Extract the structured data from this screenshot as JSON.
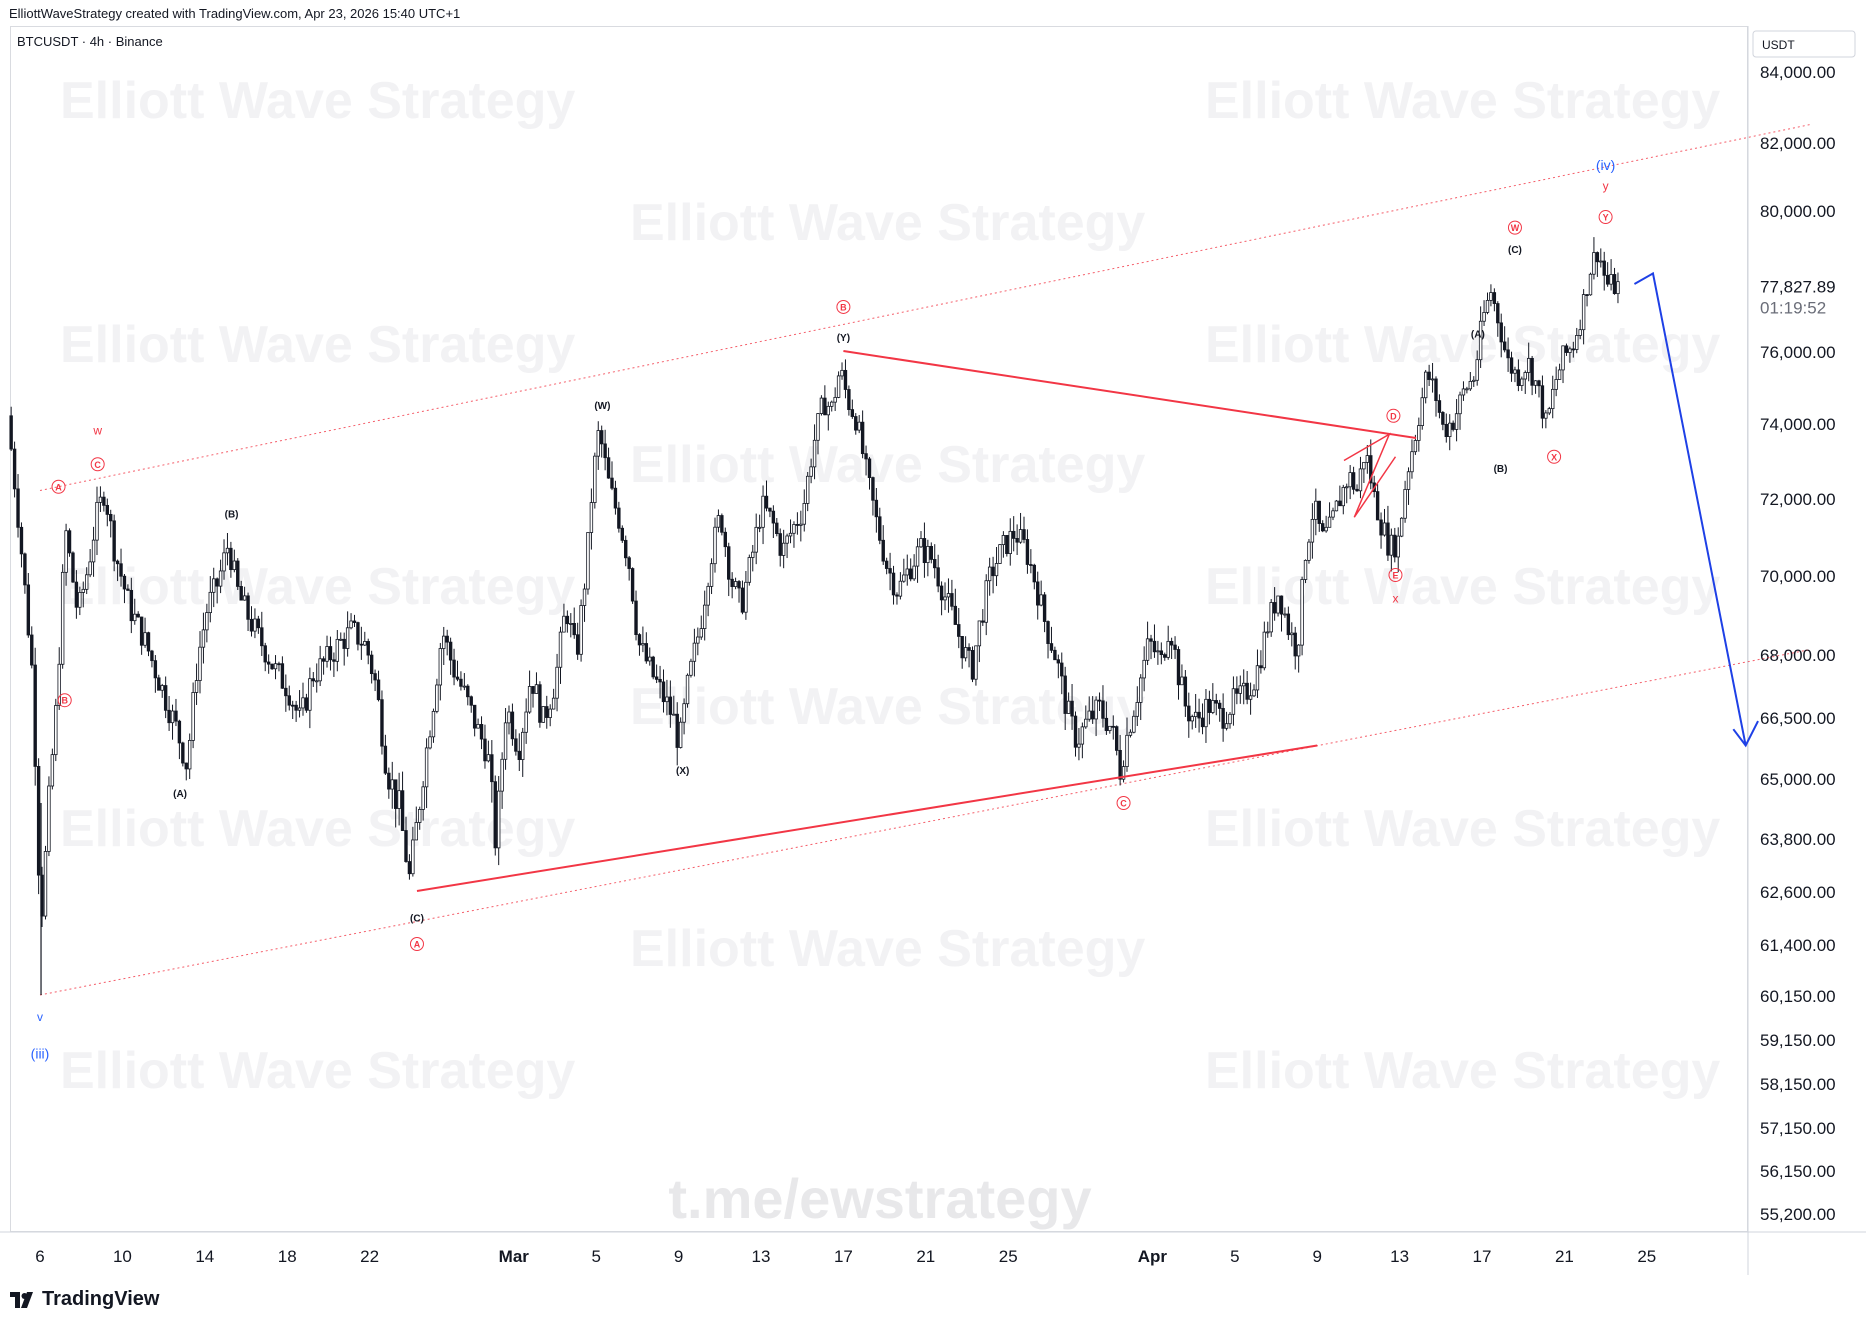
{
  "header": {
    "credit": "ElliottWaveStrategy created with TradingView.com, Apr 23, 2026 15:40 UTC+1",
    "symbol": "BTCUSDT · 4h · Binance"
  },
  "footer": {
    "brand": "TradingView"
  },
  "watermarks": {
    "text": "Elliott Wave Strategy",
    "link": "t.me/ewstrategy"
  },
  "colors": {
    "candle": "#131722",
    "red": "#f23645",
    "blue": "#1e40e6",
    "blue_label": "#2962ff",
    "watermark": "#f2f2f4"
  },
  "chart_data": {
    "type": "candlestick",
    "title": "",
    "y_unit": "USDT",
    "last_price": "77,827.89",
    "countdown": "01:19:52",
    "y_ticks": [
      {
        "label": "84,000.00",
        "value": 84000
      },
      {
        "label": "82,000.00",
        "value": 82000
      },
      {
        "label": "80,000.00",
        "value": 80000
      },
      {
        "label": "76,000.00",
        "value": 76000
      },
      {
        "label": "74,000.00",
        "value": 74000
      },
      {
        "label": "72,000.00",
        "value": 72000
      },
      {
        "label": "70,000.00",
        "value": 70000
      },
      {
        "label": "68,000.00",
        "value": 68000
      },
      {
        "label": "66,500.00",
        "value": 66500
      },
      {
        "label": "65,000.00",
        "value": 65000
      },
      {
        "label": "63,800.00",
        "value": 63800
      },
      {
        "label": "62,600.00",
        "value": 62600
      },
      {
        "label": "61,400.00",
        "value": 61400
      },
      {
        "label": "60,150.00",
        "value": 60150
      },
      {
        "label": "59,150.00",
        "value": 59150
      },
      {
        "label": "58,150.00",
        "value": 58150
      },
      {
        "label": "57,150.00",
        "value": 57150
      },
      {
        "label": "56,150.00",
        "value": 56150
      },
      {
        "label": "55,200.00",
        "value": 55200
      }
    ],
    "x_ticks": [
      {
        "label": "6",
        "day": 0
      },
      {
        "label": "10",
        "day": 4
      },
      {
        "label": "14",
        "day": 8
      },
      {
        "label": "18",
        "day": 12
      },
      {
        "label": "22",
        "day": 16
      },
      {
        "label": "Mar",
        "day": 23,
        "bold": true
      },
      {
        "label": "5",
        "day": 27
      },
      {
        "label": "9",
        "day": 31
      },
      {
        "label": "13",
        "day": 35
      },
      {
        "label": "17",
        "day": 39
      },
      {
        "label": "21",
        "day": 43
      },
      {
        "label": "25",
        "day": 47
      },
      {
        "label": "Apr",
        "day": 54,
        "bold": true
      },
      {
        "label": "5",
        "day": 58
      },
      {
        "label": "9",
        "day": 62
      },
      {
        "label": "13",
        "day": 66
      },
      {
        "label": "17",
        "day": 70
      },
      {
        "label": "21",
        "day": 74
      },
      {
        "label": "25",
        "day": 78
      }
    ],
    "anchors": [
      {
        "day": -1.4,
        "p": 74200
      },
      {
        "day": -0.8,
        "p": 71000
      },
      {
        "day": -0.2,
        "p": 67500
      },
      {
        "day": 0.2,
        "p": 61800
      },
      {
        "day": 0.6,
        "p": 64500
      },
      {
        "day": 1.0,
        "p": 67000
      },
      {
        "day": 1.4,
        "p": 71200
      },
      {
        "day": 2.0,
        "p": 69000
      },
      {
        "day": 2.5,
        "p": 70200
      },
      {
        "day": 2.9,
        "p": 71500
      },
      {
        "day": 3.3,
        "p": 72200
      },
      {
        "day": 3.8,
        "p": 70600
      },
      {
        "day": 4.5,
        "p": 69200
      },
      {
        "day": 5.2,
        "p": 68400
      },
      {
        "day": 6.0,
        "p": 67300
      },
      {
        "day": 6.8,
        "p": 66200
      },
      {
        "day": 7.3,
        "p": 65300
      },
      {
        "day": 7.8,
        "p": 67800
      },
      {
        "day": 8.3,
        "p": 69200
      },
      {
        "day": 8.8,
        "p": 69800
      },
      {
        "day": 9.3,
        "p": 70800
      },
      {
        "day": 9.8,
        "p": 69500
      },
      {
        "day": 10.4,
        "p": 68800
      },
      {
        "day": 11.0,
        "p": 68200
      },
      {
        "day": 11.6,
        "p": 67600
      },
      {
        "day": 12.2,
        "p": 67200
      },
      {
        "day": 12.8,
        "p": 66400
      },
      {
        "day": 13.4,
        "p": 67500
      },
      {
        "day": 14.0,
        "p": 67800
      },
      {
        "day": 14.6,
        "p": 68200
      },
      {
        "day": 15.3,
        "p": 68600
      },
      {
        "day": 16.0,
        "p": 68200
      },
      {
        "day": 16.5,
        "p": 67200
      },
      {
        "day": 17.0,
        "p": 65200
      },
      {
        "day": 17.6,
        "p": 64400
      },
      {
        "day": 18.1,
        "p": 62900
      },
      {
        "day": 18.5,
        "p": 64200
      },
      {
        "day": 18.9,
        "p": 65600
      },
      {
        "day": 19.3,
        "p": 67000
      },
      {
        "day": 19.7,
        "p": 68600
      },
      {
        "day": 20.2,
        "p": 67700
      },
      {
        "day": 20.8,
        "p": 67000
      },
      {
        "day": 21.4,
        "p": 66200
      },
      {
        "day": 21.9,
        "p": 65600
      },
      {
        "day": 22.3,
        "p": 63600
      },
      {
        "day": 22.8,
        "p": 66800
      },
      {
        "day": 23.4,
        "p": 65700
      },
      {
        "day": 24.0,
        "p": 67500
      },
      {
        "day": 24.6,
        "p": 66400
      },
      {
        "day": 25.2,
        "p": 67400
      },
      {
        "day": 25.7,
        "p": 69200
      },
      {
        "day": 26.2,
        "p": 67900
      },
      {
        "day": 26.7,
        "p": 70300
      },
      {
        "day": 27.0,
        "p": 72500
      },
      {
        "day": 27.3,
        "p": 73800
      },
      {
        "day": 27.8,
        "p": 72300
      },
      {
        "day": 28.3,
        "p": 71400
      },
      {
        "day": 28.8,
        "p": 70200
      },
      {
        "day": 29.2,
        "p": 68300
      },
      {
        "day": 29.8,
        "p": 67600
      },
      {
        "day": 30.4,
        "p": 67000
      },
      {
        "day": 30.9,
        "p": 66500
      },
      {
        "day": 31.2,
        "p": 65800
      },
      {
        "day": 31.6,
        "p": 67200
      },
      {
        "day": 32.2,
        "p": 68700
      },
      {
        "day": 32.7,
        "p": 70400
      },
      {
        "day": 33.2,
        "p": 71600
      },
      {
        "day": 33.7,
        "p": 69900
      },
      {
        "day": 34.2,
        "p": 69200
      },
      {
        "day": 34.7,
        "p": 70400
      },
      {
        "day": 35.2,
        "p": 71800
      },
      {
        "day": 35.7,
        "p": 71400
      },
      {
        "day": 36.2,
        "p": 70600
      },
      {
        "day": 36.7,
        "p": 71200
      },
      {
        "day": 37.2,
        "p": 71700
      },
      {
        "day": 37.7,
        "p": 73400
      },
      {
        "day": 38.2,
        "p": 74600
      },
      {
        "day": 38.6,
        "p": 74400
      },
      {
        "day": 39.0,
        "p": 75500
      },
      {
        "day": 39.4,
        "p": 74600
      },
      {
        "day": 39.8,
        "p": 74100
      },
      {
        "day": 40.3,
        "p": 72600
      },
      {
        "day": 40.8,
        "p": 71300
      },
      {
        "day": 41.3,
        "p": 70200
      },
      {
        "day": 41.8,
        "p": 69600
      },
      {
        "day": 42.3,
        "p": 70100
      },
      {
        "day": 42.9,
        "p": 70700
      },
      {
        "day": 43.5,
        "p": 70400
      },
      {
        "day": 44.0,
        "p": 69600
      },
      {
        "day": 44.5,
        "p": 68900
      },
      {
        "day": 45.0,
        "p": 68100
      },
      {
        "day": 45.4,
        "p": 67600
      },
      {
        "day": 45.8,
        "p": 68800
      },
      {
        "day": 46.3,
        "p": 70000
      },
      {
        "day": 46.9,
        "p": 70700
      },
      {
        "day": 47.5,
        "p": 71100
      },
      {
        "day": 48.0,
        "p": 70700
      },
      {
        "day": 48.5,
        "p": 69800
      },
      {
        "day": 49.0,
        "p": 68700
      },
      {
        "day": 49.5,
        "p": 67900
      },
      {
        "day": 50.0,
        "p": 66700
      },
      {
        "day": 50.5,
        "p": 65900
      },
      {
        "day": 51.0,
        "p": 66400
      },
      {
        "day": 51.6,
        "p": 66700
      },
      {
        "day": 52.2,
        "p": 66200
      },
      {
        "day": 52.6,
        "p": 65200
      },
      {
        "day": 53.0,
        "p": 66200
      },
      {
        "day": 53.5,
        "p": 67200
      },
      {
        "day": 54.0,
        "p": 68300
      },
      {
        "day": 54.6,
        "p": 67800
      },
      {
        "day": 55.0,
        "p": 68800
      },
      {
        "day": 55.4,
        "p": 67600
      },
      {
        "day": 55.8,
        "p": 66700
      },
      {
        "day": 56.3,
        "p": 66400
      },
      {
        "day": 56.9,
        "p": 66800
      },
      {
        "day": 57.5,
        "p": 66500
      },
      {
        "day": 58.0,
        "p": 66800
      },
      {
        "day": 58.6,
        "p": 67000
      },
      {
        "day": 59.2,
        "p": 67500
      },
      {
        "day": 59.8,
        "p": 68800
      },
      {
        "day": 60.3,
        "p": 69600
      },
      {
        "day": 60.8,
        "p": 68600
      },
      {
        "day": 61.2,
        "p": 68100
      },
      {
        "day": 61.6,
        "p": 70600
      },
      {
        "day": 62.0,
        "p": 71800
      },
      {
        "day": 62.4,
        "p": 70900
      },
      {
        "day": 62.8,
        "p": 71200
      },
      {
        "day": 63.2,
        "p": 71900
      },
      {
        "day": 63.7,
        "p": 72600
      },
      {
        "day": 64.1,
        "p": 72200
      },
      {
        "day": 64.5,
        "p": 73300
      },
      {
        "day": 64.9,
        "p": 72100
      },
      {
        "day": 65.3,
        "p": 71300
      },
      {
        "day": 65.7,
        "p": 70700
      },
      {
        "day": 66.1,
        "p": 70900
      },
      {
        "day": 66.5,
        "p": 72600
      },
      {
        "day": 67.0,
        "p": 73900
      },
      {
        "day": 67.5,
        "p": 75400
      },
      {
        "day": 67.9,
        "p": 74800
      },
      {
        "day": 68.3,
        "p": 73800
      },
      {
        "day": 68.8,
        "p": 74100
      },
      {
        "day": 69.3,
        "p": 74900
      },
      {
        "day": 69.8,
        "p": 75300
      },
      {
        "day": 70.2,
        "p": 76900
      },
      {
        "day": 70.6,
        "p": 77700
      },
      {
        "day": 71.0,
        "p": 76800
      },
      {
        "day": 71.4,
        "p": 75700
      },
      {
        "day": 71.9,
        "p": 75300
      },
      {
        "day": 72.4,
        "p": 75700
      },
      {
        "day": 72.9,
        "p": 74900
      },
      {
        "day": 73.3,
        "p": 73900
      },
      {
        "day": 73.7,
        "p": 75100
      },
      {
        "day": 74.1,
        "p": 75800
      },
      {
        "day": 74.6,
        "p": 76200
      },
      {
        "day": 75.0,
        "p": 77100
      },
      {
        "day": 75.4,
        "p": 78300
      },
      {
        "day": 75.8,
        "p": 78900
      },
      {
        "day": 76.2,
        "p": 77900
      },
      {
        "day": 76.7,
        "p": 77827.89
      }
    ],
    "annotations": [
      {
        "text": "(iii)",
        "day": 0,
        "price": 58800,
        "color": "blue",
        "size": 14
      },
      {
        "text": "v",
        "day": 0,
        "price": 59650,
        "color": "blue",
        "size": 12
      },
      {
        "text": "A",
        "day": 0.9,
        "price": 72300,
        "color": "red",
        "circle": true
      },
      {
        "text": "B",
        "day": 1.2,
        "price": 66900,
        "color": "red",
        "circle": true
      },
      {
        "text": "w",
        "day": 2.8,
        "price": 73800,
        "color": "red",
        "size": 12
      },
      {
        "text": "C",
        "day": 2.8,
        "price": 72900,
        "color": "red",
        "circle": true
      },
      {
        "text": "(B)",
        "day": 9.3,
        "price": 71600,
        "color": "black",
        "size": 10
      },
      {
        "text": "(A)",
        "day": 6.8,
        "price": 64700,
        "color": "black",
        "size": 10
      },
      {
        "text": "(C)",
        "day": 18.3,
        "price": 62000,
        "color": "black",
        "size": 10
      },
      {
        "text": "A",
        "day": 18.3,
        "price": 61400,
        "color": "red",
        "circle": true
      },
      {
        "text": "(W)",
        "day": 27.3,
        "price": 74500,
        "color": "black",
        "size": 10
      },
      {
        "text": "(X)",
        "day": 31.2,
        "price": 65200,
        "color": "black",
        "size": 10
      },
      {
        "text": "B",
        "day": 39.0,
        "price": 77250,
        "color": "red",
        "circle": true
      },
      {
        "text": "(Y)",
        "day": 39.0,
        "price": 76400,
        "color": "black",
        "size": 10
      },
      {
        "text": "C",
        "day": 52.6,
        "price": 64500,
        "color": "red",
        "circle": true
      },
      {
        "text": "D",
        "day": 65.7,
        "price": 74200,
        "color": "red",
        "circle": true
      },
      {
        "text": "E",
        "day": 65.8,
        "price": 70000,
        "color": "red",
        "circle": true
      },
      {
        "text": "x",
        "day": 65.8,
        "price": 69400,
        "color": "red",
        "size": 12
      },
      {
        "text": "(A)",
        "day": 69.8,
        "price": 76500,
        "color": "black",
        "size": 10
      },
      {
        "text": "(B)",
        "day": 70.9,
        "price": 72800,
        "color": "black",
        "size": 10
      },
      {
        "text": "W",
        "day": 71.6,
        "price": 79500,
        "color": "red",
        "circle": true
      },
      {
        "text": "(C)",
        "day": 71.6,
        "price": 78900,
        "color": "black",
        "size": 10
      },
      {
        "text": "X",
        "day": 73.5,
        "price": 73100,
        "color": "red",
        "circle": true
      },
      {
        "text": "Y",
        "day": 76.0,
        "price": 79800,
        "color": "red",
        "circle": true
      },
      {
        "text": "y",
        "day": 76.0,
        "price": 80700,
        "color": "red",
        "size": 12
      },
      {
        "text": "(iv)",
        "day": 76.0,
        "price": 81300,
        "color": "blue",
        "size": 14
      }
    ]
  }
}
